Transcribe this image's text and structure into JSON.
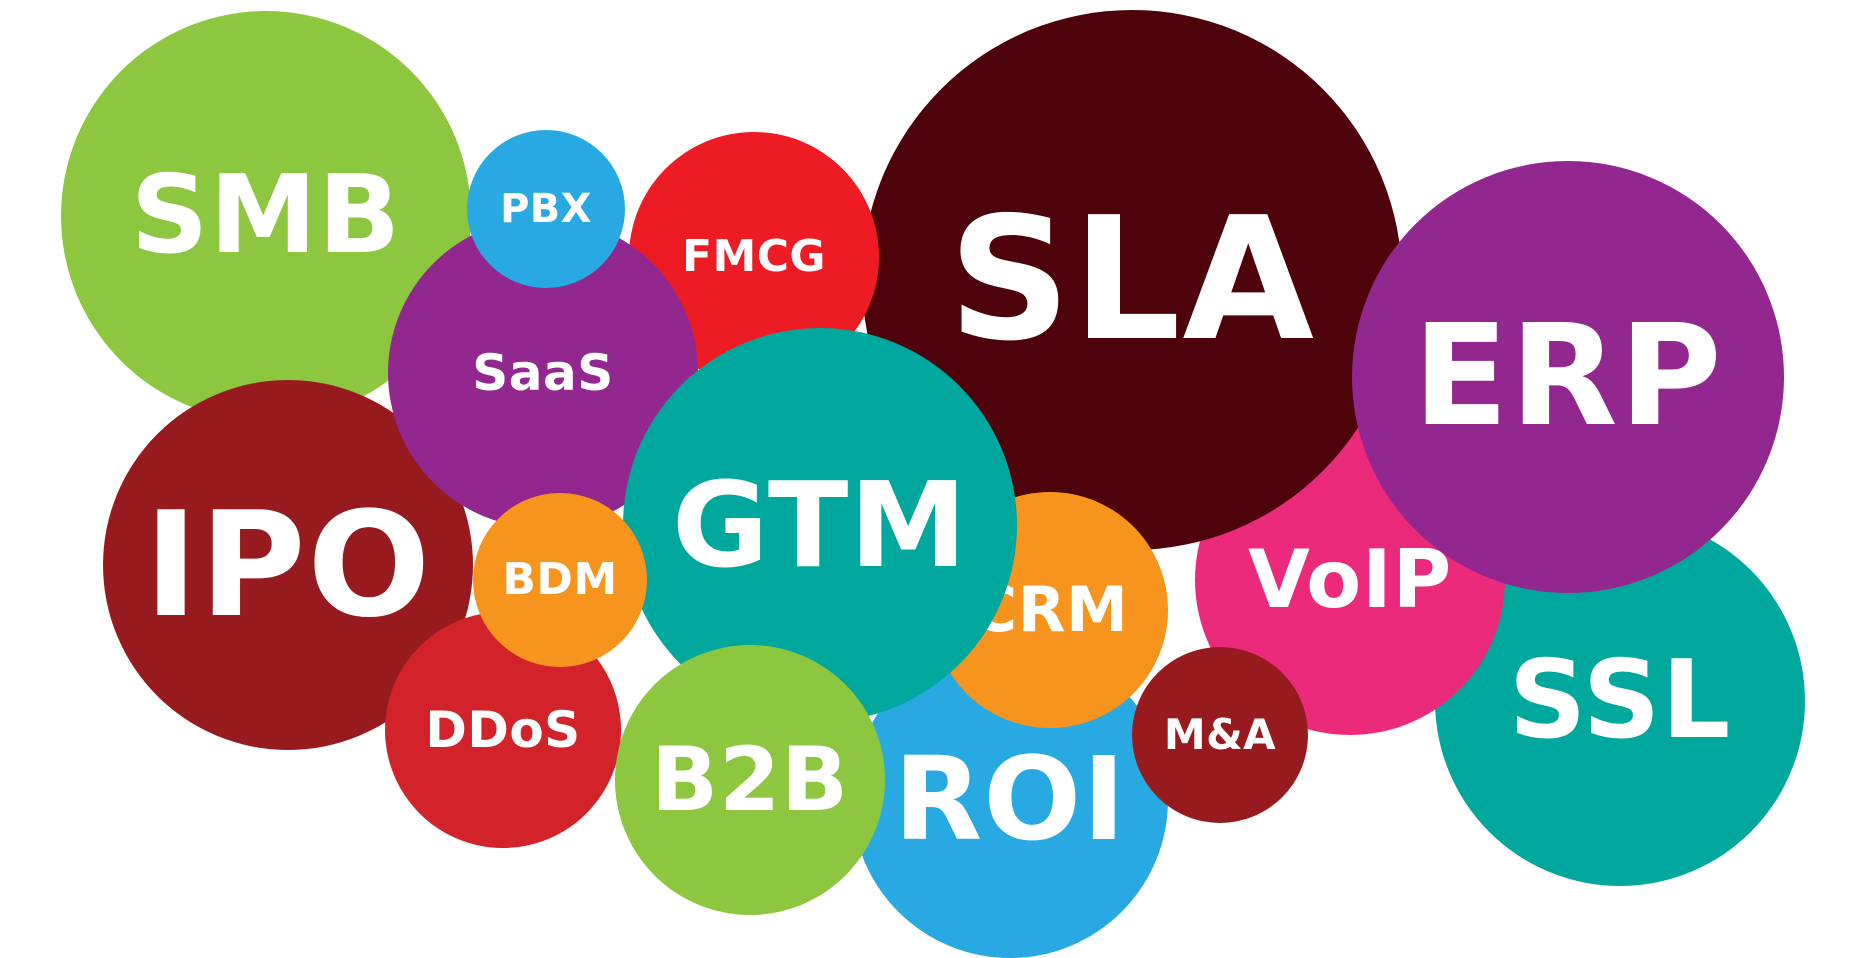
{
  "bubbles": [
    {
      "id": "smb",
      "label": "SMB",
      "color": "#8dc63f"
    },
    {
      "id": "ipo",
      "label": "IPO",
      "color": "#971b1e"
    },
    {
      "id": "ssl",
      "label": "SSL",
      "color": "#00a79d"
    },
    {
      "id": "voip",
      "label": "VoIP",
      "color": "#ec2a7b"
    },
    {
      "id": "sla",
      "label": "SLA",
      "color": "#4e0209"
    },
    {
      "id": "erp",
      "label": "ERP",
      "color": "#92278f"
    },
    {
      "id": "fmcg",
      "label": "FMCG",
      "color": "#ed1c24"
    },
    {
      "id": "roi",
      "label": "ROI",
      "color": "#29a9e1"
    },
    {
      "id": "crm",
      "label": "CRM",
      "color": "#f7941d"
    },
    {
      "id": "saas",
      "label": "SaaS",
      "color": "#92278f"
    },
    {
      "id": "pbx",
      "label": "PBX",
      "color": "#29a9e1"
    },
    {
      "id": "ddos",
      "label": "DDoS",
      "color": "#d2232a"
    },
    {
      "id": "gtm",
      "label": "GTM",
      "color": "#00a79d"
    },
    {
      "id": "b2b",
      "label": "B2B",
      "color": "#8dc63f"
    },
    {
      "id": "bdm",
      "label": "BDM",
      "color": "#f7941d"
    },
    {
      "id": "mna",
      "label": "M&A",
      "color": "#971b1e"
    }
  ]
}
